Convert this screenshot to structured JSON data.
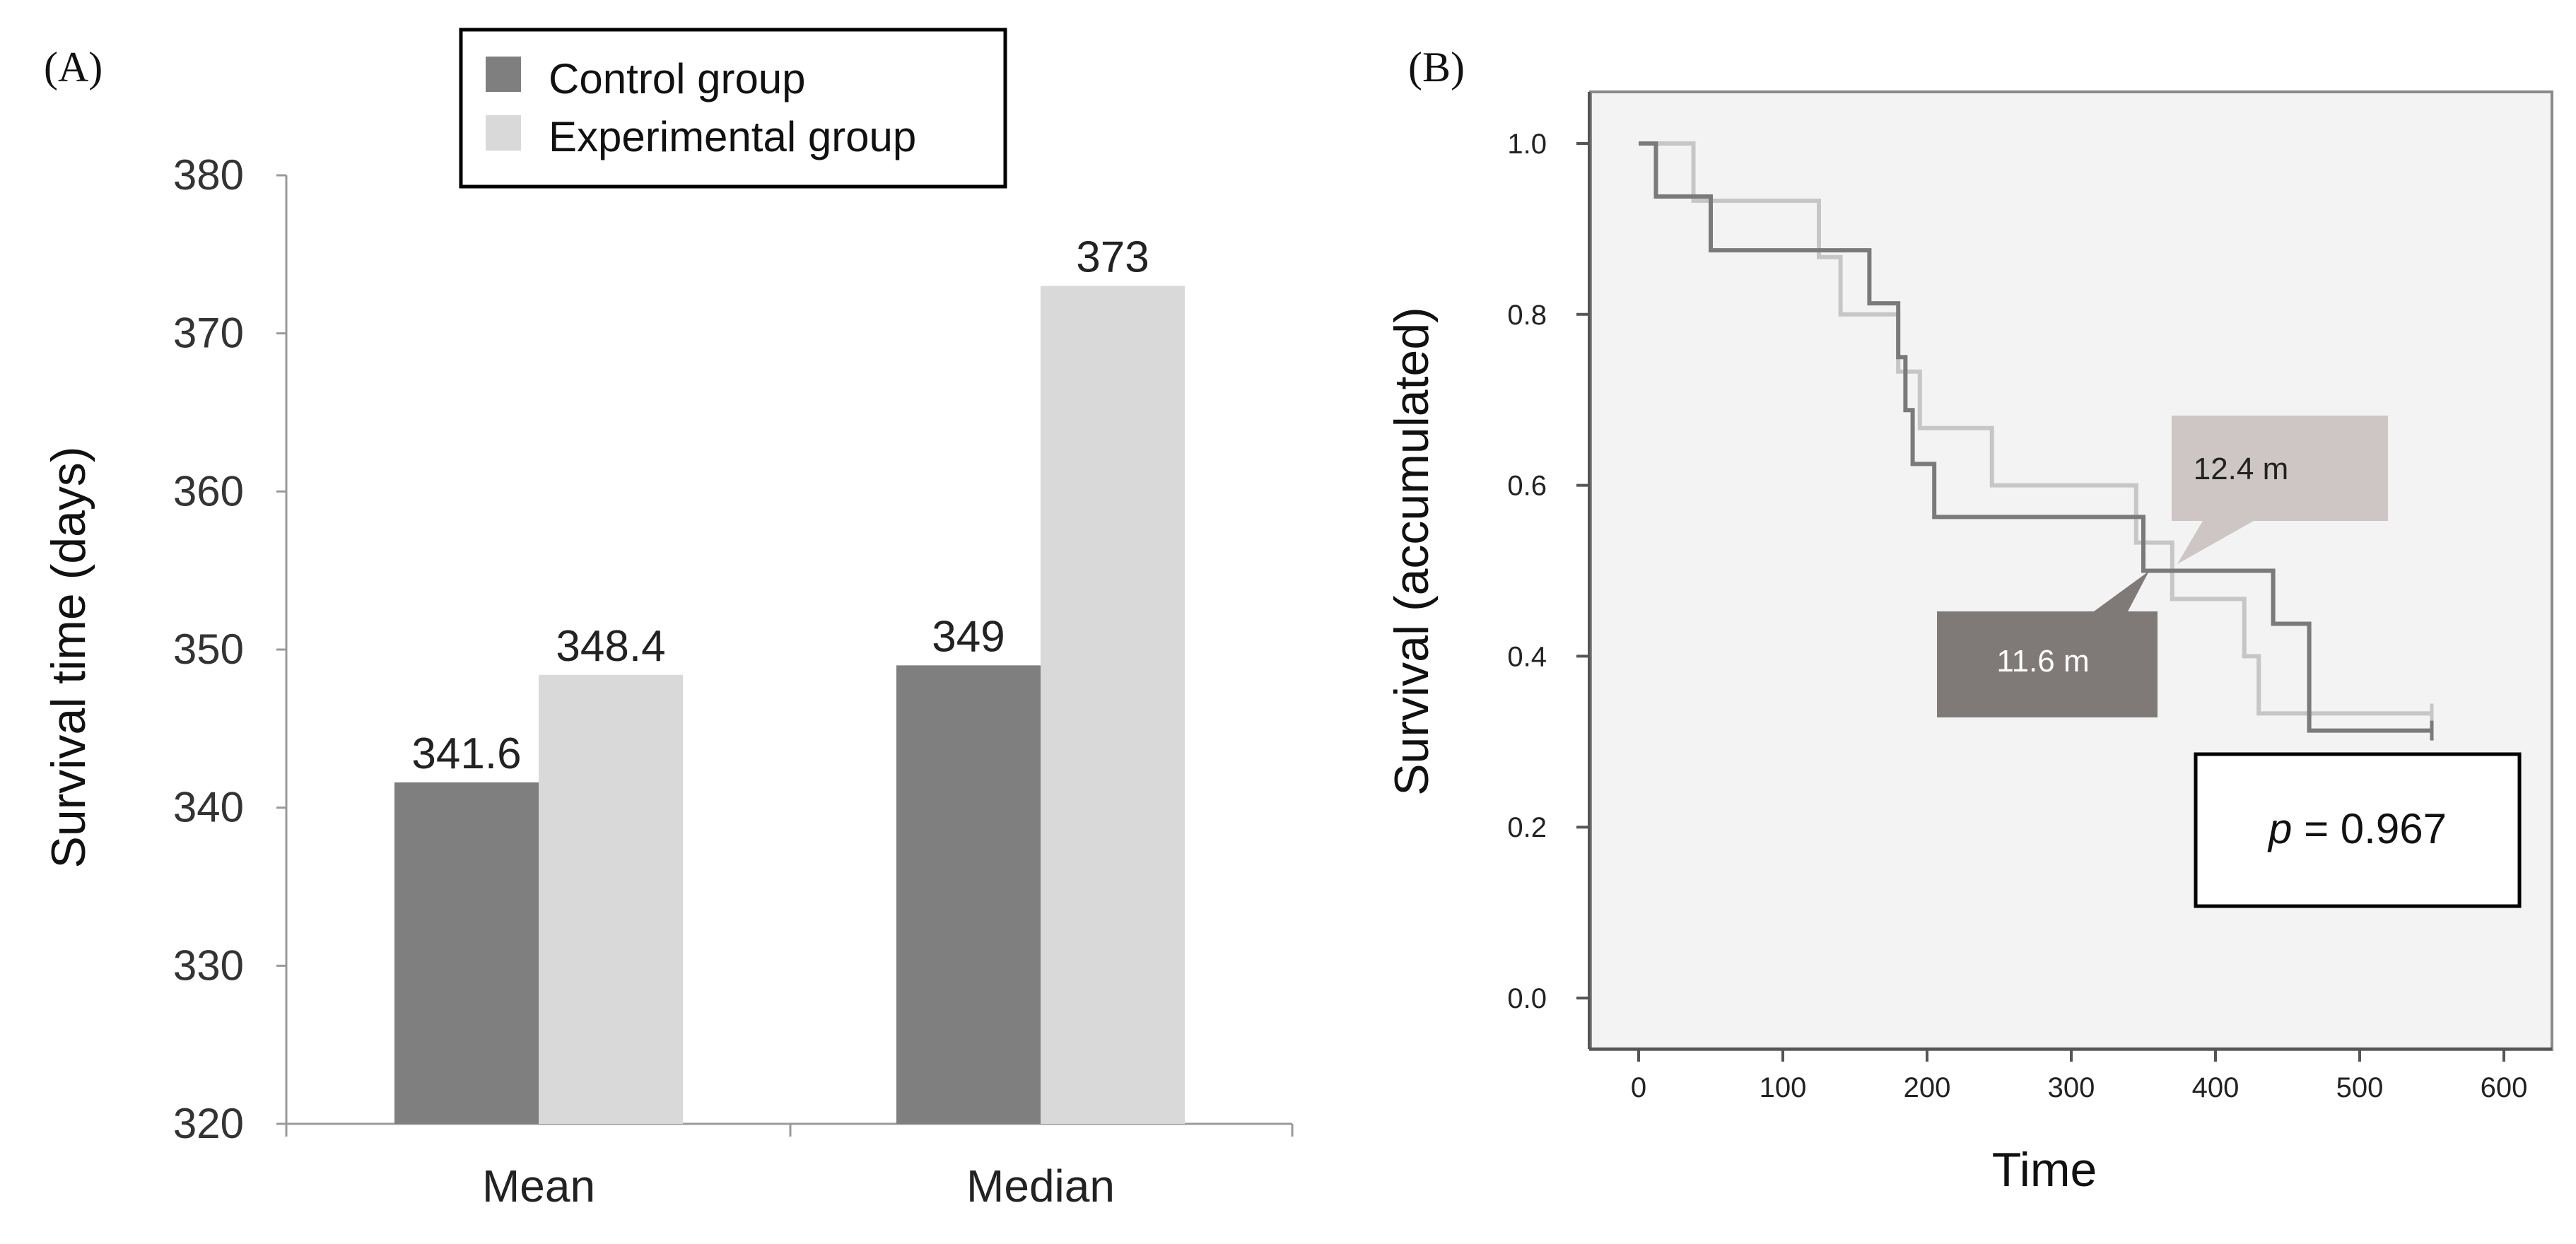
{
  "chart_data": [
    {
      "panel": "(A)",
      "type": "bar",
      "ylabel": "Survival time (days)",
      "xlabel": "",
      "categories": [
        "Mean",
        "Median"
      ],
      "ylim": [
        320,
        380
      ],
      "yticks": [
        320,
        330,
        340,
        350,
        360,
        370,
        380
      ],
      "grid": false,
      "legend_position": "top",
      "series": [
        {
          "name": "Control group",
          "color": "#7f7f7f",
          "values": [
            341.6,
            349
          ],
          "labels": [
            "341.6",
            "349"
          ]
        },
        {
          "name": "Experimental group",
          "color": "#d9d9d9",
          "values": [
            348.4,
            373
          ],
          "labels": [
            "348.4",
            "373"
          ]
        }
      ]
    },
    {
      "panel": "(B)",
      "type": "line",
      "subtype": "kaplan-meier step",
      "xlabel": "Time",
      "ylabel": "Survival (accumulated)",
      "xlim": [
        -30,
        630
      ],
      "ylim": [
        -0.06,
        1.06
      ],
      "xticks": [
        0,
        100,
        200,
        300,
        400,
        500,
        600
      ],
      "yticks": [
        "0.0",
        "0.2",
        "0.4",
        "0.6",
        "0.8",
        "1.0"
      ],
      "grid": false,
      "background": "#f3f3f3",
      "series": [
        {
          "name": "Control group",
          "color": "#7a7a7a",
          "x": [
            0,
            12,
            50,
            160,
            180,
            185,
            190,
            205,
            350,
            440,
            465,
            550
          ],
          "y": [
            1.0,
            0.938,
            0.875,
            0.813,
            0.75,
            0.688,
            0.625,
            0.563,
            0.5,
            0.438,
            0.313,
            0.313
          ]
        },
        {
          "name": "Experimental group",
          "color": "#c6c6c6",
          "x": [
            0,
            38,
            125,
            140,
            180,
            195,
            245,
            345,
            370,
            420,
            430,
            550
          ],
          "y": [
            1.0,
            0.933,
            0.867,
            0.8,
            0.733,
            0.667,
            0.6,
            0.533,
            0.467,
            0.4,
            0.333,
            0.333
          ]
        }
      ],
      "annotations": [
        {
          "text": "12.4 m",
          "color": "#cdc6c4",
          "text_color": "#222222"
        },
        {
          "text": "11.6 m",
          "color": "#7f7a78",
          "text_color": "#ffffff"
        }
      ],
      "p_label": "p",
      "p_value": " = 0.967"
    }
  ]
}
